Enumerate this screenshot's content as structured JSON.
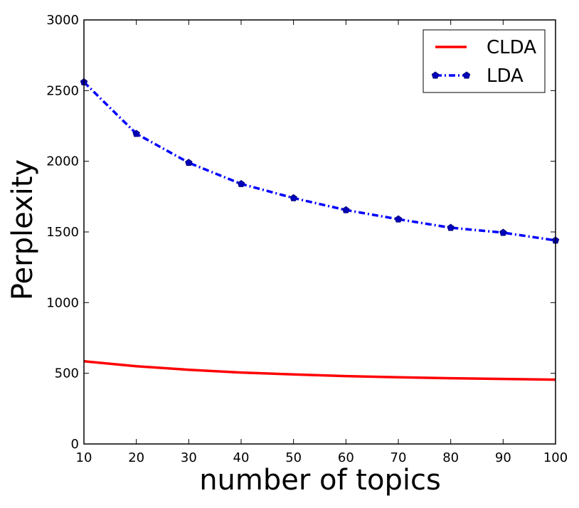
{
  "chart_data": {
    "type": "line",
    "title": "",
    "xlabel": "number of topics",
    "ylabel": "Perplexity",
    "xlim": [
      10,
      100
    ],
    "ylim": [
      0,
      3000
    ],
    "x": [
      10,
      20,
      30,
      40,
      50,
      60,
      70,
      80,
      90,
      100
    ],
    "xticks": [
      "10",
      "20",
      "30",
      "40",
      "50",
      "60",
      "70",
      "80",
      "90",
      "100"
    ],
    "yticks": [
      "0",
      "500",
      "1000",
      "1500",
      "2000",
      "2500",
      "3000"
    ],
    "grid": false,
    "legend_position": "top-right",
    "series": [
      {
        "name": "CLDA",
        "color": "#ff0000",
        "style": "solid",
        "marker": "none",
        "values": [
          585,
          550,
          525,
          505,
          492,
          480,
          472,
          465,
          460,
          455
        ]
      },
      {
        "name": "LDA",
        "color": "#0000ff",
        "style": "dashdot",
        "marker": "pentagon",
        "values": [
          2560,
          2195,
          1990,
          1840,
          1740,
          1655,
          1590,
          1530,
          1495,
          1440
        ]
      }
    ]
  }
}
